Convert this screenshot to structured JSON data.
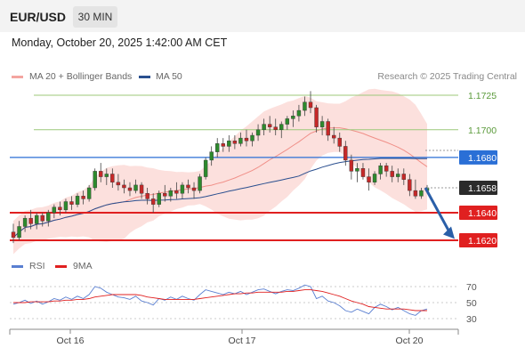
{
  "header": {
    "symbol": "EUR/USD",
    "timeframe": "30 MIN",
    "datetime": "Monday, October 20, 2025 1:42:00 AM CET"
  },
  "credit": "Research © 2025 Trading Central",
  "legend": [
    {
      "label": "MA 20 + Bollinger Bands",
      "color": "#f4a5a0"
    },
    {
      "label": "MA 50",
      "color": "#2a4f8f"
    }
  ],
  "rsi_legend": [
    {
      "label": "RSI",
      "color": "#5a7fd1"
    },
    {
      "label": "9MA",
      "color": "#e02020"
    }
  ],
  "colors": {
    "up": "#2d8a2d",
    "down": "#c62828",
    "resistance": "#9cc97a",
    "pivot": "#2a6fd6",
    "support": "#e02020",
    "arrow": "#2a5fa8"
  },
  "chart_data": [
    {
      "type": "candlestick",
      "x_ticks": [
        "Oct 16",
        "Oct 17",
        "Oct 20"
      ],
      "ylim": [
        1.16,
        1.1745
      ],
      "current_price": {
        "label": "1.1658",
        "value": 1.1658
      },
      "levels": [
        {
          "label": "1.1725",
          "value": 1.1725,
          "kind": "resistance"
        },
        {
          "label": "1.1700",
          "value": 1.17,
          "kind": "resistance"
        },
        {
          "label": "1.1680",
          "value": 1.168,
          "kind": "pivot"
        },
        {
          "label": "1.1640",
          "value": 1.164,
          "kind": "support"
        },
        {
          "label": "1.1620",
          "value": 1.162,
          "kind": "support"
        }
      ],
      "candles": [
        [
          1.1626,
          1.1632,
          1.1618,
          1.1622
        ],
        [
          1.1622,
          1.1634,
          1.162,
          1.163
        ],
        [
          1.163,
          1.1638,
          1.1626,
          1.1636
        ],
        [
          1.1636,
          1.1642,
          1.1628,
          1.1632
        ],
        [
          1.1632,
          1.164,
          1.1628,
          1.1638
        ],
        [
          1.1638,
          1.164,
          1.163,
          1.1634
        ],
        [
          1.1634,
          1.1642,
          1.163,
          1.164
        ],
        [
          1.164,
          1.1646,
          1.1636,
          1.1644
        ],
        [
          1.1644,
          1.1648,
          1.1638,
          1.1642
        ],
        [
          1.1642,
          1.165,
          1.164,
          1.1648
        ],
        [
          1.1648,
          1.1652,
          1.1642,
          1.1646
        ],
        [
          1.1646,
          1.1654,
          1.1644,
          1.1652
        ],
        [
          1.1652,
          1.1656,
          1.1646,
          1.165
        ],
        [
          1.165,
          1.166,
          1.1648,
          1.1658
        ],
        [
          1.1658,
          1.1672,
          1.1656,
          1.167
        ],
        [
          1.167,
          1.1676,
          1.1662,
          1.1666
        ],
        [
          1.1666,
          1.1672,
          1.166,
          1.1668
        ],
        [
          1.1668,
          1.1672,
          1.1658,
          1.1662
        ],
        [
          1.1662,
          1.1668,
          1.1656,
          1.166
        ],
        [
          1.166,
          1.1664,
          1.1654,
          1.1658
        ],
        [
          1.1658,
          1.1662,
          1.1652,
          1.1656
        ],
        [
          1.1656,
          1.1664,
          1.1654,
          1.166
        ],
        [
          1.166,
          1.1662,
          1.165,
          1.1654
        ],
        [
          1.1654,
          1.1658,
          1.1646,
          1.165
        ],
        [
          1.165,
          1.1654,
          1.164,
          1.1646
        ],
        [
          1.1646,
          1.1656,
          1.1644,
          1.1654
        ],
        [
          1.1654,
          1.166,
          1.1648,
          1.1652
        ],
        [
          1.1652,
          1.1658,
          1.1648,
          1.1656
        ],
        [
          1.1656,
          1.1662,
          1.165,
          1.1654
        ],
        [
          1.1654,
          1.1662,
          1.165,
          1.166
        ],
        [
          1.166,
          1.1664,
          1.1654,
          1.1658
        ],
        [
          1.1658,
          1.1662,
          1.165,
          1.1656
        ],
        [
          1.1656,
          1.1668,
          1.1654,
          1.1666
        ],
        [
          1.1666,
          1.168,
          1.1664,
          1.1678
        ],
        [
          1.1678,
          1.1688,
          1.1674,
          1.1684
        ],
        [
          1.1684,
          1.1694,
          1.168,
          1.169
        ],
        [
          1.169,
          1.1694,
          1.1684,
          1.1688
        ],
        [
          1.1688,
          1.1696,
          1.1684,
          1.1692
        ],
        [
          1.1692,
          1.1696,
          1.1686,
          1.169
        ],
        [
          1.169,
          1.1698,
          1.1688,
          1.1694
        ],
        [
          1.1694,
          1.17,
          1.1688,
          1.1692
        ],
        [
          1.1692,
          1.1698,
          1.1688,
          1.1696
        ],
        [
          1.1696,
          1.1704,
          1.1692,
          1.17
        ],
        [
          1.17,
          1.1708,
          1.1696,
          1.1704
        ],
        [
          1.1704,
          1.171,
          1.1698,
          1.1702
        ],
        [
          1.1702,
          1.1708,
          1.1696,
          1.17
        ],
        [
          1.17,
          1.1706,
          1.1694,
          1.1704
        ],
        [
          1.1704,
          1.171,
          1.17,
          1.1708
        ],
        [
          1.1708,
          1.1714,
          1.1702,
          1.171
        ],
        [
          1.171,
          1.1718,
          1.1706,
          1.1714
        ],
        [
          1.1714,
          1.1724,
          1.171,
          1.172
        ],
        [
          1.172,
          1.1728,
          1.1712,
          1.1716
        ],
        [
          1.1716,
          1.1718,
          1.1698,
          1.1702
        ],
        [
          1.1702,
          1.171,
          1.1696,
          1.1706
        ],
        [
          1.1706,
          1.1708,
          1.1692,
          1.1696
        ],
        [
          1.1696,
          1.1702,
          1.169,
          1.1694
        ],
        [
          1.1694,
          1.1698,
          1.1684,
          1.1688
        ],
        [
          1.1688,
          1.1692,
          1.1674,
          1.1678
        ],
        [
          1.1678,
          1.1682,
          1.1664,
          1.167
        ],
        [
          1.167,
          1.1676,
          1.1662,
          1.1672
        ],
        [
          1.1672,
          1.1676,
          1.1664,
          1.1666
        ],
        [
          1.1666,
          1.1672,
          1.1656,
          1.1662
        ],
        [
          1.1662,
          1.167,
          1.166,
          1.1668
        ],
        [
          1.1668,
          1.1676,
          1.1664,
          1.1674
        ],
        [
          1.1674,
          1.1676,
          1.1666,
          1.167
        ],
        [
          1.167,
          1.1674,
          1.1662,
          1.1666
        ],
        [
          1.1666,
          1.1672,
          1.1662,
          1.1668
        ],
        [
          1.1668,
          1.1672,
          1.166,
          1.1664
        ],
        [
          1.1664,
          1.1668,
          1.1652,
          1.1656
        ],
        [
          1.1656,
          1.1664,
          1.165,
          1.1652
        ],
        [
          1.1652,
          1.1658,
          1.165,
          1.1656
        ],
        [
          1.1656,
          1.166,
          1.1654,
          1.1658
        ]
      ]
    },
    {
      "type": "line",
      "name": "RSI",
      "x_ticks": [
        "Oct 16",
        "Oct 17",
        "Oct 20"
      ],
      "y_ticks": [
        70,
        50,
        30
      ],
      "ylim": [
        20,
        80
      ],
      "series": [
        {
          "name": "RSI",
          "values": [
            48,
            50,
            53,
            49,
            52,
            48,
            51,
            55,
            53,
            57,
            54,
            58,
            55,
            60,
            70,
            68,
            63,
            60,
            57,
            56,
            54,
            58,
            52,
            50,
            47,
            55,
            53,
            57,
            54,
            58,
            55,
            53,
            60,
            66,
            64,
            62,
            60,
            63,
            61,
            64,
            60,
            63,
            66,
            67,
            64,
            61,
            64,
            66,
            65,
            68,
            72,
            70,
            55,
            58,
            52,
            50,
            46,
            40,
            38,
            42,
            39,
            36,
            44,
            48,
            45,
            41,
            44,
            40,
            36,
            34,
            40,
            42
          ]
        },
        {
          "name": "9MA",
          "values": [
            50,
            50,
            50,
            51,
            51,
            51,
            51,
            52,
            52,
            53,
            53,
            54,
            54,
            55,
            57,
            58,
            59,
            60,
            60,
            60,
            60,
            60,
            59,
            57,
            56,
            55,
            54,
            54,
            54,
            54,
            54,
            54,
            55,
            56,
            57,
            58,
            59,
            60,
            61,
            61,
            62,
            62,
            63,
            63,
            63,
            63,
            63,
            64,
            64,
            65,
            66,
            66,
            65,
            64,
            62,
            60,
            58,
            55,
            52,
            50,
            48,
            45,
            44,
            43,
            42,
            42,
            42,
            42,
            41,
            40,
            40,
            40
          ]
        }
      ]
    }
  ]
}
